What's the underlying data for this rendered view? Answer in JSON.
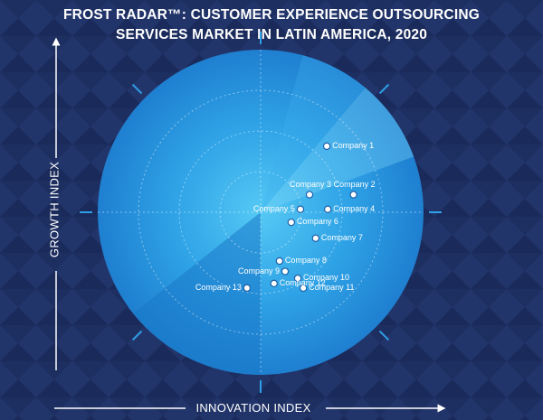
{
  "title_line1": "FROST RADAR™: CUSTOMER EXPERIENCE OUTSOURCING",
  "title_line2": "SERVICES MARKET IN LATIN AMERICA, 2020",
  "colors": {
    "background": "#1a2a5a",
    "pattern": "#22356b",
    "radar_dark": "#1f7fd0",
    "radar_light": "#4fc3f2",
    "accent": "#2e9fe8",
    "point": "#ffffff"
  },
  "chart_data": {
    "type": "scatter",
    "title": "FROST RADAR™: CUSTOMER EXPERIENCE OUTSOURCING SERVICES MARKET IN LATIN AMERICA, 2020",
    "xlabel": "INNOVATION INDEX",
    "ylabel": "GROWTH INDEX",
    "xlim": [
      -5,
      5
    ],
    "ylim": [
      -5,
      5
    ],
    "rings": 4,
    "grid": true,
    "legend": "none",
    "points": [
      {
        "label": "Company 1",
        "x": 2.03,
        "y": 2.03
      },
      {
        "label": "Company 2",
        "x": 2.85,
        "y": 0.54
      },
      {
        "label": "Company 3",
        "x": 1.5,
        "y": 0.54
      },
      {
        "label": "Company 4",
        "x": 2.06,
        "y": 0.09
      },
      {
        "label": "Company 5",
        "x": 1.22,
        "y": 0.09
      },
      {
        "label": "Company 6",
        "x": 0.94,
        "y": -0.31
      },
      {
        "label": "Company 7",
        "x": 1.69,
        "y": -0.8
      },
      {
        "label": "Company 8",
        "x": 0.58,
        "y": -1.5
      },
      {
        "label": "Company 9",
        "x": 0.75,
        "y": -1.82
      },
      {
        "label": "Company 10",
        "x": 1.14,
        "y": -2.03
      },
      {
        "label": "Company 11",
        "x": 1.31,
        "y": -2.33
      },
      {
        "label": "Company 12",
        "x": 0.41,
        "y": -2.19
      },
      {
        "label": "Company 13",
        "x": -0.42,
        "y": -2.33
      }
    ]
  }
}
